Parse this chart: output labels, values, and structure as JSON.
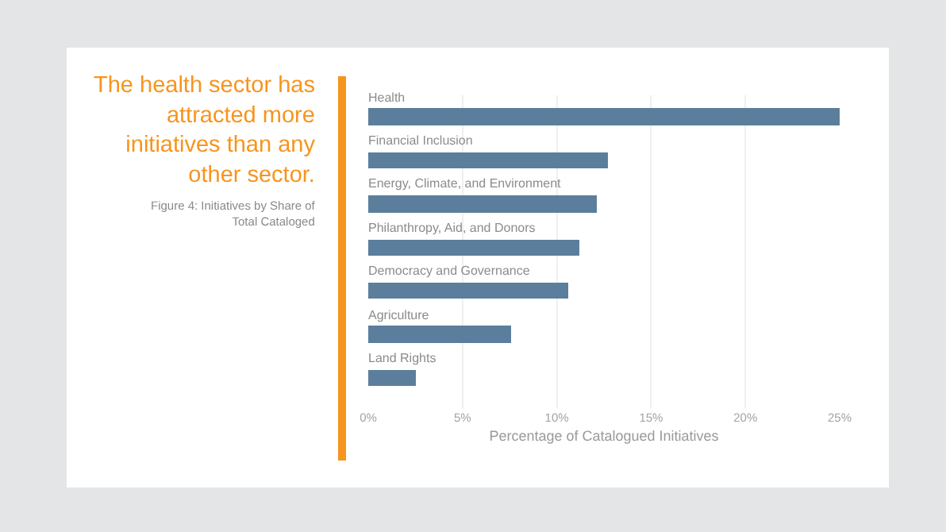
{
  "chart_data": {
    "type": "bar",
    "orientation": "horizontal",
    "title": "The health sector has attracted more initiatives than any other sector.",
    "subtitle": "Figure 4: Initiatives by Share of Total Cataloged",
    "xlabel": "Percentage of Catalogued Initiatives",
    "categories": [
      "Health",
      "Financial Inclusion",
      "Energy, Climate, and Environment",
      "Philanthropy, Aid, and Donors",
      "Democracy and Governance",
      "Agriculture",
      "Land Rights"
    ],
    "values": [
      25.0,
      12.7,
      12.1,
      11.2,
      10.6,
      7.6,
      2.5
    ],
    "color": "#5b7e9c",
    "xlim": [
      0,
      25
    ],
    "xticks": [
      {
        "value": 0,
        "label": "0%"
      },
      {
        "value": 5,
        "label": "5%"
      },
      {
        "value": 10,
        "label": "10%"
      },
      {
        "value": 15,
        "label": "15%"
      },
      {
        "value": 20,
        "label": "20%"
      },
      {
        "value": 25,
        "label": "25%"
      }
    ],
    "grid": "x"
  }
}
